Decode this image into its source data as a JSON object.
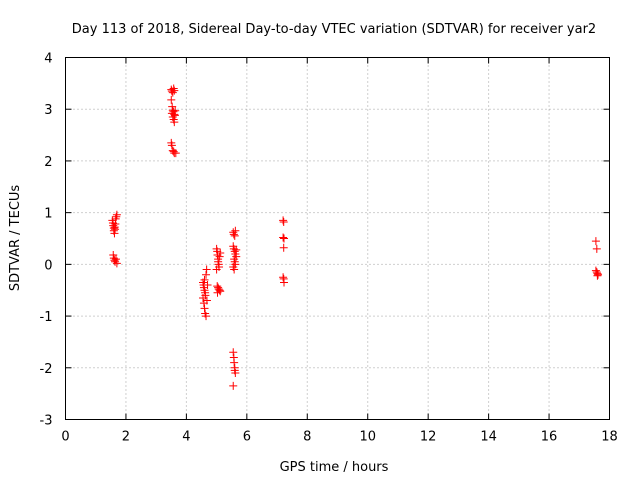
{
  "chart_data": {
    "type": "scatter",
    "title": "Day 113 of 2018, Sidereal Day-to-day VTEC variation (SDTVAR) for receiver yar2",
    "xlabel": "GPS time / hours",
    "ylabel": "SDTVAR / TECUs",
    "xlim": [
      0,
      18
    ],
    "ylim": [
      -3,
      4
    ],
    "xticks": [
      0,
      2,
      4,
      6,
      8,
      10,
      12,
      14,
      16,
      18
    ],
    "yticks": [
      -3,
      -2,
      -1,
      0,
      1,
      2,
      3,
      4
    ],
    "grid": true,
    "marker": "plus",
    "colors": {
      "marker": "#ff0000",
      "grid": "#a0a0a0",
      "axes": "#000000"
    },
    "series": [
      {
        "name": "SDTVAR",
        "points": [
          [
            1.55,
            0.85
          ],
          [
            1.57,
            0.8
          ],
          [
            1.58,
            0.75
          ],
          [
            1.6,
            0.7
          ],
          [
            1.6,
            0.65
          ],
          [
            1.62,
            0.6
          ],
          [
            1.63,
            0.72
          ],
          [
            1.65,
            0.78
          ],
          [
            1.66,
            0.88
          ],
          [
            1.68,
            0.92
          ],
          [
            1.7,
            0.96
          ],
          [
            1.64,
            0.68
          ],
          [
            1.58,
            0.18
          ],
          [
            1.6,
            0.12
          ],
          [
            1.62,
            0.08
          ],
          [
            1.64,
            0.05
          ],
          [
            1.67,
            0.1
          ],
          [
            1.7,
            0.02
          ],
          [
            3.5,
            3.38
          ],
          [
            3.52,
            3.35
          ],
          [
            3.55,
            3.32
          ],
          [
            3.58,
            3.4
          ],
          [
            3.6,
            3.36
          ],
          [
            3.5,
            3.18
          ],
          [
            3.53,
            3.05
          ],
          [
            3.55,
            2.98
          ],
          [
            3.57,
            2.95
          ],
          [
            3.6,
            2.9
          ],
          [
            3.62,
            2.88
          ],
          [
            3.52,
            2.92
          ],
          [
            3.55,
            2.85
          ],
          [
            3.58,
            2.8
          ],
          [
            3.6,
            2.75
          ],
          [
            3.63,
            2.97
          ],
          [
            3.5,
            2.35
          ],
          [
            3.52,
            2.3
          ],
          [
            3.55,
            2.2
          ],
          [
            3.58,
            2.18
          ],
          [
            3.6,
            2.15
          ],
          [
            3.65,
            2.15
          ],
          [
            4.55,
            -0.35
          ],
          [
            4.57,
            -0.4
          ],
          [
            4.58,
            -0.45
          ],
          [
            4.6,
            -0.3
          ],
          [
            4.6,
            -0.5
          ],
          [
            4.62,
            -0.55
          ],
          [
            4.63,
            -0.6
          ],
          [
            4.65,
            -0.2
          ],
          [
            4.67,
            -0.1
          ],
          [
            4.55,
            -0.65
          ],
          [
            4.58,
            -0.75
          ],
          [
            4.6,
            -0.85
          ],
          [
            4.62,
            -0.95
          ],
          [
            4.65,
            -1.0
          ],
          [
            4.68,
            -0.7
          ],
          [
            4.7,
            -0.4
          ],
          [
            5.0,
            0.3
          ],
          [
            5.02,
            0.25
          ],
          [
            5.03,
            0.18
          ],
          [
            5.05,
            0.1
          ],
          [
            5.05,
            0.05
          ],
          [
            5.07,
            0.0
          ],
          [
            5.08,
            -0.05
          ],
          [
            5.1,
            0.15
          ],
          [
            5.12,
            0.22
          ],
          [
            5.0,
            -0.1
          ],
          [
            5.02,
            -0.42
          ],
          [
            5.05,
            -0.45
          ],
          [
            5.07,
            -0.48
          ],
          [
            5.1,
            -0.5
          ],
          [
            5.12,
            -0.52
          ],
          [
            5.03,
            -0.55
          ],
          [
            5.55,
            0.62
          ],
          [
            5.57,
            0.58
          ],
          [
            5.6,
            0.55
          ],
          [
            5.62,
            0.65
          ],
          [
            5.55,
            0.35
          ],
          [
            5.57,
            0.3
          ],
          [
            5.6,
            0.25
          ],
          [
            5.62,
            0.2
          ],
          [
            5.65,
            0.15
          ],
          [
            5.58,
            0.1
          ],
          [
            5.6,
            0.05
          ],
          [
            5.62,
            0.0
          ],
          [
            5.55,
            -0.05
          ],
          [
            5.58,
            -0.1
          ],
          [
            5.65,
            0.28
          ],
          [
            5.55,
            -1.7
          ],
          [
            5.57,
            -1.8
          ],
          [
            5.58,
            -1.9
          ],
          [
            5.6,
            -2.0
          ],
          [
            5.6,
            -2.05
          ],
          [
            5.62,
            -2.1
          ],
          [
            5.55,
            -2.35
          ],
          [
            7.2,
            0.85
          ],
          [
            7.22,
            0.82
          ],
          [
            7.2,
            0.52
          ],
          [
            7.23,
            0.5
          ],
          [
            7.22,
            0.32
          ],
          [
            7.2,
            -0.25
          ],
          [
            7.22,
            -0.28
          ],
          [
            7.23,
            -0.35
          ],
          [
            17.55,
            0.45
          ],
          [
            17.58,
            0.3
          ],
          [
            17.55,
            -0.12
          ],
          [
            17.58,
            -0.15
          ],
          [
            17.6,
            -0.18
          ],
          [
            17.62,
            -0.2
          ],
          [
            17.6,
            -0.22
          ]
        ]
      }
    ]
  }
}
